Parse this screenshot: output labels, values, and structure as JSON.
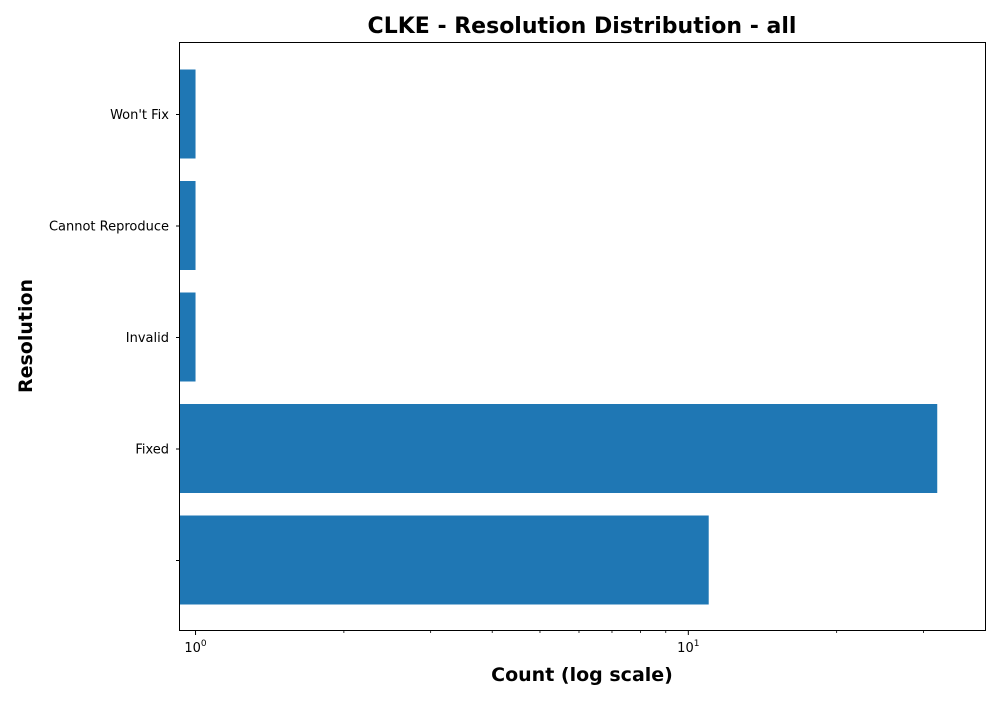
{
  "chart_data": {
    "type": "bar",
    "orientation": "horizontal",
    "title": "CLKE - Resolution Distribution - all",
    "xlabel": "Count (log scale)",
    "ylabel": "Resolution",
    "x_scale": "log",
    "xlim": [
      0.93,
      40
    ],
    "x_ticks": [
      {
        "value": 1,
        "base": "10",
        "exp": "0"
      },
      {
        "value": 10,
        "base": "10",
        "exp": "1"
      }
    ],
    "categories": [
      "",
      "Fixed",
      "Invalid",
      "Cannot Reproduce",
      "Won't Fix"
    ],
    "values": [
      11,
      32,
      1,
      1,
      1
    ],
    "bar_color": "#1f77b4",
    "grid": false,
    "legend": "none"
  }
}
